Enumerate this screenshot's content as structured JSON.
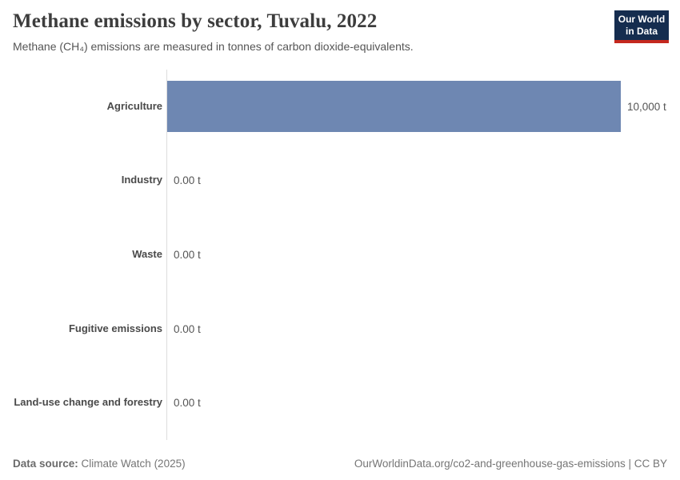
{
  "header": {
    "title": "Methane emissions by sector, Tuvalu, 2022",
    "subtitle": "Methane (CH₄) emissions are measured in tonnes of carbon dioxide-equivalents.",
    "logo": {
      "line1": "Our World",
      "line2": "in Data"
    }
  },
  "chart_data": {
    "type": "bar",
    "orientation": "horizontal",
    "title": "Methane emissions by sector, Tuvalu, 2022",
    "categories": [
      "Agriculture",
      "Industry",
      "Waste",
      "Fugitive emissions",
      "Land-use change and forestry"
    ],
    "values": [
      10000,
      0,
      0,
      0,
      0
    ],
    "value_labels": [
      "10,000 t",
      "0.00 t",
      "0.00 t",
      "0.00 t",
      "0.00 t"
    ],
    "unit": "t",
    "xlabel": "",
    "ylabel": "",
    "xlim": [
      0,
      10000
    ],
    "grid": false,
    "legend": "none",
    "bar_color": "#6e87b2",
    "axis_color": "#dddddd"
  },
  "footer": {
    "source_label": "Data source:",
    "source_value": "Climate Watch (2025)",
    "credit": "OurWorldinData.org/co2-and-greenhouse-gas-emissions | CC BY"
  }
}
